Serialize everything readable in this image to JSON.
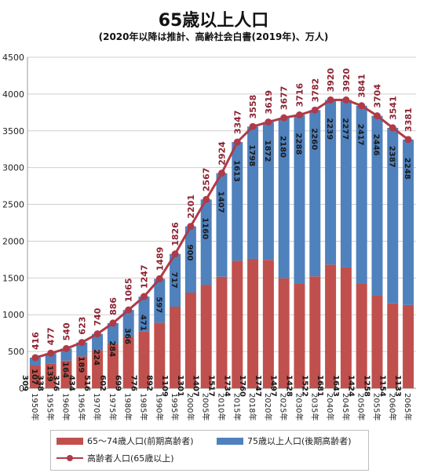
{
  "title": "65歳以上人口",
  "subtitle": "(2020年以降は推計、高齢社会白書(2019年)、万人)",
  "legend": {
    "young_old": "65～74歳人口(前期高齢者)",
    "old_old": "75歳以上人口(後期高齢者)",
    "total": "高齢者人口(65歳以上)"
  },
  "colors": {
    "young_old": "#c0504d",
    "old_old": "#4f81bd",
    "total_line": "#b03a48"
  },
  "chart_data": {
    "type": "bar",
    "stacked": true,
    "title": "65歳以上人口",
    "subtitle": "(2020年以降は推計、高齢社会白書(2019年)、万人)",
    "categories": [
      "1950年",
      "1955年",
      "1960年",
      "1965年",
      "1970年",
      "1975年",
      "1980年",
      "1985年",
      "1990年",
      "1995年",
      "2000年",
      "2005年",
      "2010年",
      "2015年",
      "2018年",
      "2020年",
      "2025年",
      "2030年",
      "2035年",
      "2040年",
      "2045年",
      "2050年",
      "2055年",
      "2060年",
      "2065年"
    ],
    "series": [
      {
        "name": "65～74歳人口(前期高齢者)",
        "type": "bar",
        "values": [
          309,
          338,
          376,
          434,
          516,
          602,
          699,
          776,
          892,
          1109,
          1301,
          1407,
          1517,
          1734,
          1760,
          1747,
          1497,
          1428,
          1522,
          1681,
          1643,
          1424,
          1258,
          1154,
          1133
        ]
      },
      {
        "name": "75歳以上人口(後期高齢者)",
        "type": "bar",
        "values": [
          107,
          139,
          164,
          189,
          224,
          284,
          366,
          471,
          597,
          717,
          900,
          1160,
          1407,
          1613,
          1798,
          1872,
          2180,
          2288,
          2260,
          2239,
          2277,
          2417,
          2446,
          2387,
          2248
        ]
      },
      {
        "name": "高齢者人口(65歳以上)",
        "type": "line",
        "values": [
          416,
          477,
          540,
          623,
          740,
          886,
          1065,
          1247,
          1489,
          1826,
          2201,
          2567,
          2924,
          3347,
          3558,
          3619,
          3677,
          3716,
          3782,
          3920,
          3920,
          3841,
          3704,
          3541,
          3381
        ]
      }
    ],
    "yticks": [
      "0",
      "500",
      "1000",
      "1500",
      "2000",
      "2500",
      "3000",
      "3500",
      "4000",
      "4500"
    ],
    "ylim": [
      0,
      4500
    ],
    "grid": true,
    "legend_position": "bottom"
  }
}
